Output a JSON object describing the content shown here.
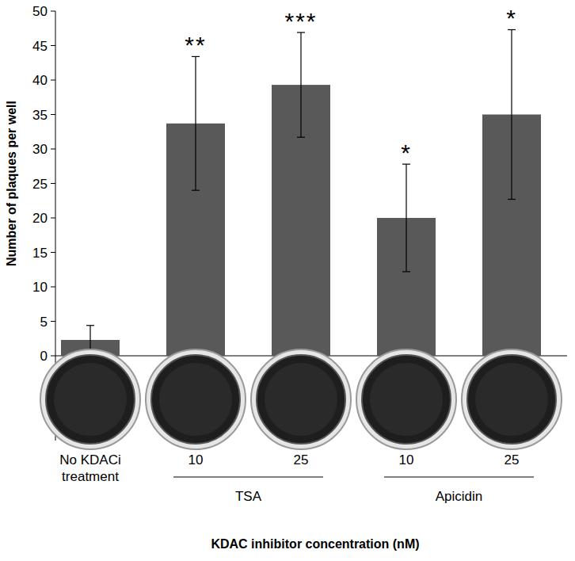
{
  "chart_data": {
    "type": "bar",
    "categories": [
      "No KDACi treatment",
      "10",
      "25",
      "10",
      "25"
    ],
    "values": [
      2.3,
      33.7,
      39.3,
      20.0,
      35.0
    ],
    "errors": [
      2.1,
      9.7,
      7.6,
      7.8,
      12.3
    ],
    "significance": [
      null,
      "**",
      "***",
      "*",
      "*"
    ],
    "groups": [
      {
        "label": "TSA",
        "categories": [
          1,
          2
        ]
      },
      {
        "label": "Apicidin",
        "categories": [
          3,
          4
        ]
      }
    ],
    "color": "#595959",
    "y_label": "Number of plaques per well",
    "x_label": "KDAC inhibitor concentration (nM)",
    "ylim": [
      0,
      50
    ],
    "yticks": [
      0,
      5,
      10,
      15,
      20,
      25,
      30,
      35,
      40,
      45,
      50
    ],
    "grid": false
  }
}
